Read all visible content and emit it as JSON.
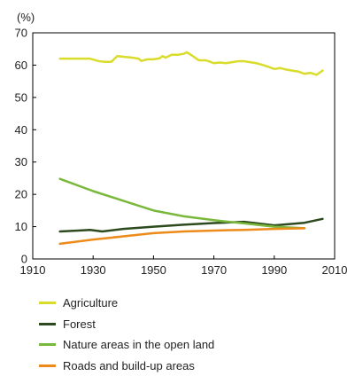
{
  "chart_data": {
    "type": "line",
    "unit_label": "(%)",
    "xlim": [
      1910,
      2010
    ],
    "ylim": [
      0,
      70
    ],
    "x_ticks": [
      1910,
      1930,
      1950,
      1970,
      1990,
      2010
    ],
    "y_ticks": [
      0,
      10,
      20,
      30,
      40,
      50,
      60,
      70
    ],
    "grid": false,
    "legend_position": "bottom",
    "series": [
      {
        "name": "Agriculture",
        "color": "#d9dc2a",
        "x": [
          1919,
          1925,
          1929,
          1932,
          1934,
          1936,
          1938,
          1941,
          1943,
          1945,
          1946,
          1948,
          1950,
          1952,
          1953,
          1954,
          1956,
          1958,
          1960,
          1961,
          1963,
          1965,
          1967,
          1968,
          1970,
          1972,
          1974,
          1976,
          1978,
          1980,
          1982,
          1984,
          1986,
          1988,
          1990,
          1992,
          1994,
          1996,
          1998,
          2000,
          2002,
          2004,
          2006
        ],
        "y": [
          62,
          62,
          62,
          61.2,
          61,
          61,
          62.8,
          62.5,
          62.3,
          62,
          61.3,
          61.8,
          61.8,
          62.1,
          62.8,
          62.3,
          63.2,
          63.2,
          63.5,
          64,
          62.8,
          61.5,
          61.5,
          61.3,
          60.6,
          60.8,
          60.6,
          60.9,
          61.2,
          61.2,
          60.9,
          60.6,
          60.1,
          59.5,
          58.8,
          59.1,
          58.6,
          58.3,
          58,
          57.3,
          57.6,
          57.0,
          58.3
        ]
      },
      {
        "name": "Forest",
        "color": "#2d4a1e",
        "x": [
          1919,
          1925,
          1929,
          1933,
          1940,
          1950,
          1960,
          1970,
          1980,
          1990,
          2000,
          2006
        ],
        "y": [
          8.5,
          8.8,
          9,
          8.5,
          9.3,
          10,
          10.6,
          11.1,
          11.5,
          10.4,
          11.2,
          12.4
        ]
      },
      {
        "name": "Nature areas in the open land",
        "color": "#7ab83b",
        "x": [
          1919,
          1930,
          1940,
          1950,
          1960,
          1970,
          1980,
          1990,
          2000
        ],
        "y": [
          24.8,
          21,
          18,
          15,
          13.2,
          12,
          11,
          10,
          9.5
        ]
      },
      {
        "name": "Roads and build-up areas",
        "color": "#ec8a1a",
        "x": [
          1919,
          1930,
          1940,
          1950,
          1960,
          1970,
          1980,
          1990,
          2000
        ],
        "y": [
          4.7,
          6,
          7,
          8,
          8.5,
          8.8,
          9,
          9.3,
          9.5
        ]
      }
    ]
  }
}
